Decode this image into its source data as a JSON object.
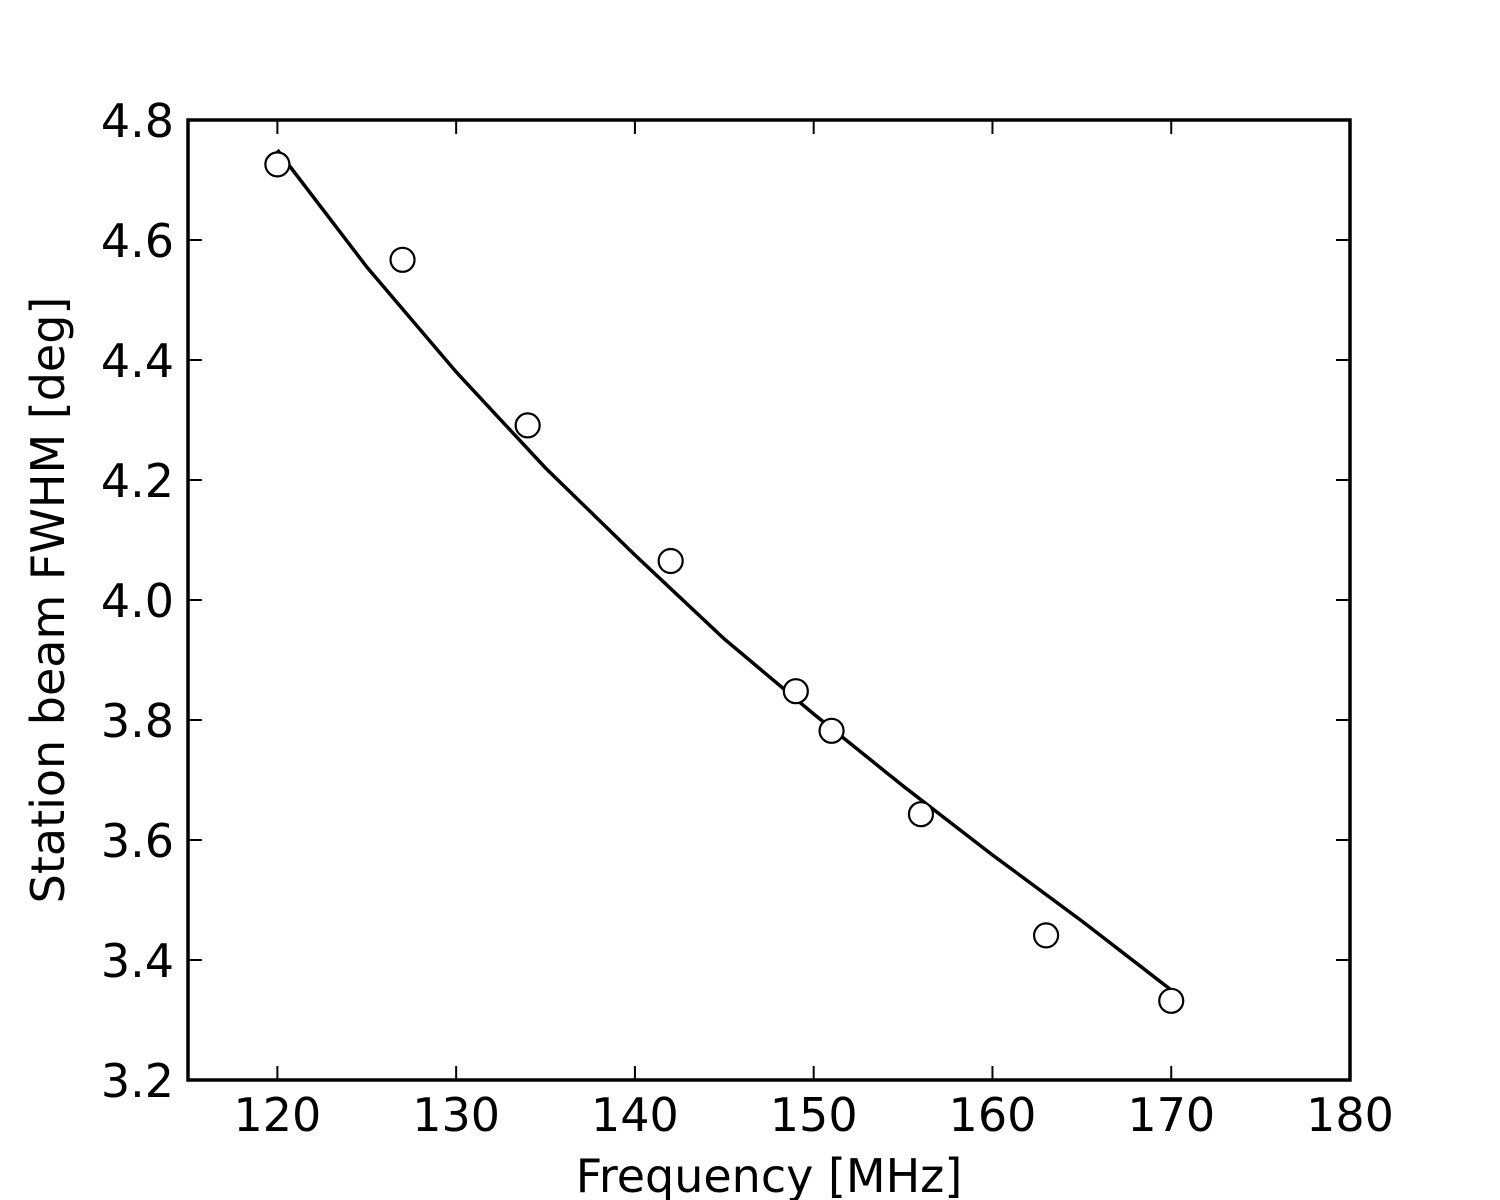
{
  "chart_data": {
    "type": "scatter",
    "xlabel": "Frequency [MHz]",
    "ylabel": "Station beam FWHM [deg]",
    "xlim": [
      115,
      180
    ],
    "ylim": [
      3.2,
      4.8
    ],
    "grid": false,
    "legend": "none",
    "x_ticks": [
      "120",
      "130",
      "140",
      "150",
      "160",
      "170",
      "180"
    ],
    "y_ticks": [
      "3.2",
      "3.4",
      "3.6",
      "3.8",
      "4.0",
      "4.2",
      "4.4",
      "4.6",
      "4.8"
    ],
    "series": [
      {
        "marker": "open-circle",
        "x": [
          120,
          127,
          134,
          142,
          149,
          151,
          156,
          163,
          170
        ],
        "y": [
          4.726,
          4.567,
          4.291,
          4.065,
          3.848,
          3.782,
          3.643,
          3.441,
          3.332
        ]
      },
      {
        "style": "line",
        "x_range": [
          120,
          170
        ],
        "curve_points": [
          [
            120,
            4.75
          ],
          [
            125,
            4.555
          ],
          [
            130,
            4.38
          ],
          [
            135,
            4.22
          ],
          [
            140,
            4.075
          ],
          [
            145,
            3.935
          ],
          [
            150,
            3.81
          ],
          [
            155,
            3.69
          ],
          [
            160,
            3.575
          ],
          [
            165,
            3.465
          ],
          [
            170,
            3.35
          ]
        ]
      }
    ],
    "colors": {
      "line": "#000000",
      "marker_edge": "#000000",
      "marker_fill": "#ffffff"
    }
  }
}
